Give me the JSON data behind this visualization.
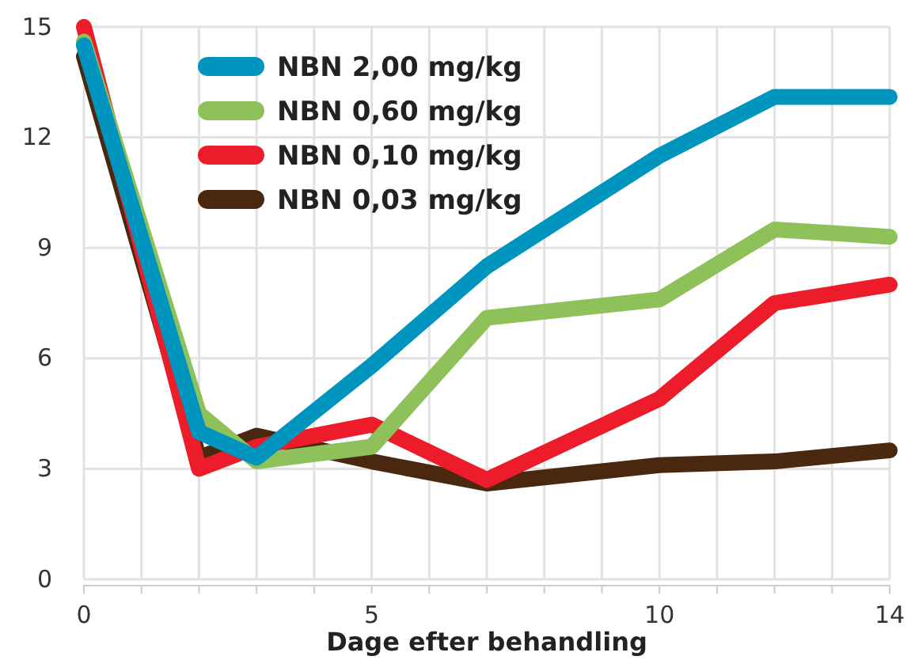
{
  "chart_data": {
    "type": "line",
    "xlabel": "Dage efter behandling",
    "x": [
      0,
      2,
      3,
      5,
      7,
      10,
      12,
      14
    ],
    "series": [
      {
        "name": "NBN 2,00 mg/kg",
        "color": "#0095be",
        "values": [
          14.5,
          4.0,
          3.3,
          5.8,
          8.5,
          11.5,
          13.1,
          13.1
        ]
      },
      {
        "name": "NBN 0,60 mg/kg",
        "color": "#8fc15a",
        "values": [
          14.6,
          4.5,
          3.2,
          3.6,
          7.1,
          7.6,
          9.5,
          9.3
        ]
      },
      {
        "name": "NBN 0,10 mg/kg",
        "color": "#ec1c2a",
        "values": [
          15.0,
          3.0,
          3.6,
          4.2,
          2.7,
          4.9,
          7.5,
          8.0
        ]
      },
      {
        "name": "NBN 0,03 mg/kg",
        "color": "#4a2810",
        "values": [
          14.2,
          3.3,
          3.9,
          3.2,
          2.6,
          3.1,
          3.2,
          3.5
        ]
      }
    ],
    "xlim": [
      0,
      14
    ],
    "xticks": [
      0,
      {
        "value": 1,
        "label": null
      },
      {
        "value": 2,
        "label": null
      },
      {
        "value": 3,
        "label": null
      },
      {
        "value": 4,
        "label": null
      },
      5,
      {
        "value": 6,
        "label": null
      },
      {
        "value": 7,
        "label": null
      },
      {
        "value": 8,
        "label": null
      },
      {
        "value": 9,
        "label": null
      },
      10,
      {
        "value": 11,
        "label": null
      },
      {
        "value": 12,
        "label": null
      },
      {
        "value": 13,
        "label": null
      },
      14
    ],
    "ylim": [
      0,
      15
    ],
    "yticks": [
      0,
      3,
      6,
      9,
      12,
      15
    ],
    "grid": true,
    "legend": "top left",
    "marker": "none",
    "line_style": "solid"
  }
}
